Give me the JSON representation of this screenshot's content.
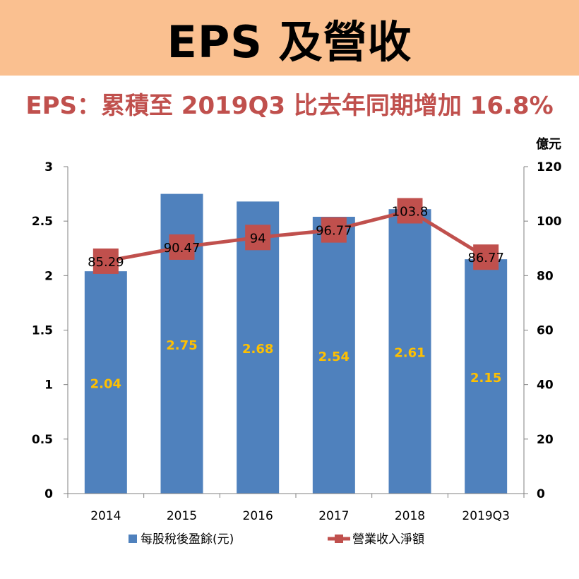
{
  "header": {
    "title": "EPS 及營收",
    "subtitle": "EPS：累積至 2019Q3 比去年同期增加 16.8%"
  },
  "colors": {
    "banner": "#fac090",
    "subtitle": "#c0504d",
    "bar": "#4f81bd",
    "line": "#c0504d",
    "bar_label": "#ffc000"
  },
  "chart_data": {
    "type": "bar+line",
    "categories": [
      "2014",
      "2015",
      "2016",
      "2017",
      "2018",
      "2019Q3"
    ],
    "series": [
      {
        "name": "每股稅後盈餘(元)",
        "type": "bar",
        "axis": "left",
        "values": [
          2.04,
          2.75,
          2.68,
          2.54,
          2.61,
          2.15
        ],
        "labels": [
          "2.04",
          "2.75",
          "2.68",
          "2.54",
          "2.61",
          "2.15"
        ]
      },
      {
        "name": "營業收入淨額",
        "type": "line",
        "axis": "right",
        "values": [
          85.29,
          90.47,
          94,
          96.77,
          103.8,
          86.77
        ],
        "labels": [
          "85.29",
          "90.47",
          "94",
          "96.77",
          "103.8",
          "86.77"
        ]
      }
    ],
    "y_left": {
      "range": [
        0,
        3
      ],
      "ticks": [
        "0",
        "0.5",
        "1",
        "1.5",
        "2",
        "2.5",
        "3"
      ]
    },
    "y_right": {
      "range": [
        0,
        120
      ],
      "ticks": [
        "0",
        "20",
        "40",
        "60",
        "80",
        "100",
        "120"
      ],
      "unit": "億元"
    },
    "grid": false,
    "legend": "bottom"
  }
}
